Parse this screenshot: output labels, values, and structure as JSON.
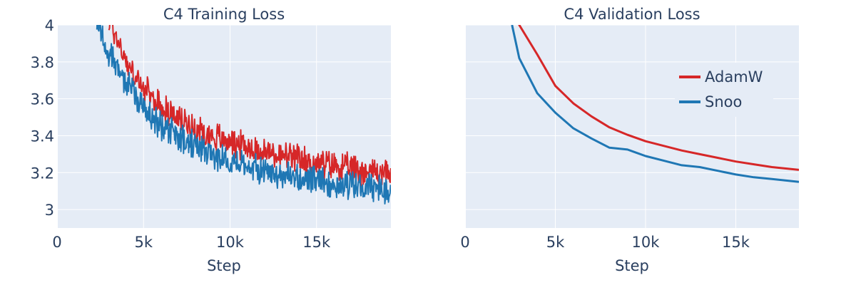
{
  "colors": {
    "plot_bg": "#e5ecf6",
    "grid": "#ffffff",
    "text": "#2a3f5f",
    "adamw": "#d62728",
    "snoo": "#1f77b4"
  },
  "legend": {
    "items": [
      {
        "label": "AdamW",
        "color": "#d62728"
      },
      {
        "label": "Snoo",
        "color": "#1f77b4"
      }
    ]
  },
  "chart_data": [
    {
      "type": "line",
      "title": "C4 Training Loss",
      "xlabel": "Step",
      "ylabel": "",
      "xlim": [
        0,
        19300
      ],
      "ylim": [
        2.9,
        4.0
      ],
      "x_ticks": [
        0,
        5000,
        10000,
        15000
      ],
      "x_tick_labels": [
        "0",
        "5k",
        "10k",
        "15k"
      ],
      "y_ticks": [
        3.0,
        3.2,
        3.4,
        3.6,
        3.8,
        4.0
      ],
      "y_tick_labels": [
        "3",
        "3.2",
        "3.4",
        "3.6",
        "3.8",
        "4"
      ],
      "grid": true,
      "noisy": true,
      "series": [
        {
          "name": "AdamW",
          "color": "#d62728",
          "x": [
            3000,
            3500,
            4000,
            4500,
            5000,
            6000,
            7000,
            8000,
            9000,
            10000,
            11000,
            12000,
            13000,
            14000,
            15000,
            16000,
            17000,
            18000,
            19300
          ],
          "y": [
            4.02,
            3.92,
            3.8,
            3.72,
            3.65,
            3.56,
            3.49,
            3.44,
            3.4,
            3.37,
            3.34,
            3.31,
            3.29,
            3.27,
            3.25,
            3.24,
            3.22,
            3.21,
            3.2
          ]
        },
        {
          "name": "Snoo",
          "color": "#1f77b4",
          "x": [
            2300,
            2800,
            3300,
            4000,
            4500,
            5000,
            6000,
            7000,
            8000,
            9000,
            10000,
            11000,
            12000,
            13000,
            14000,
            15000,
            16000,
            17000,
            18000,
            19300
          ],
          "y": [
            4.0,
            3.9,
            3.8,
            3.68,
            3.62,
            3.55,
            3.45,
            3.39,
            3.34,
            3.3,
            3.27,
            3.24,
            3.21,
            3.19,
            3.17,
            3.15,
            3.14,
            3.13,
            3.12,
            3.1
          ]
        }
      ]
    },
    {
      "type": "line",
      "title": "C4 Validation Loss",
      "xlabel": "Step",
      "ylabel": "",
      "xlim": [
        0,
        18500
      ],
      "ylim": [
        2.9,
        4.0
      ],
      "x_ticks": [
        0,
        5000,
        10000,
        15000
      ],
      "x_tick_labels": [
        "0",
        "5k",
        "10k",
        "15k"
      ],
      "y_ticks": [
        3.0,
        3.2,
        3.4,
        3.6,
        3.8,
        4.0
      ],
      "y_tick_labels": [],
      "grid": true,
      "noisy": false,
      "legend": "top-right",
      "series": [
        {
          "name": "AdamW",
          "color": "#d62728",
          "x": [
            2500,
            3000,
            4000,
            5000,
            6000,
            7000,
            8000,
            9000,
            10000,
            11000,
            12000,
            13000,
            14000,
            15000,
            16000,
            17000,
            18500
          ],
          "y": [
            4.15,
            4.0,
            3.84,
            3.67,
            3.575,
            3.505,
            3.445,
            3.405,
            3.37,
            3.345,
            3.32,
            3.3,
            3.28,
            3.26,
            3.245,
            3.23,
            3.215
          ]
        },
        {
          "name": "Snoo",
          "color": "#1f77b4",
          "x": [
            2600,
            3000,
            4000,
            5000,
            6000,
            7000,
            8000,
            9000,
            10000,
            11000,
            12000,
            13000,
            14000,
            15000,
            16000,
            17000,
            18500
          ],
          "y": [
            4.0,
            3.82,
            3.63,
            3.525,
            3.44,
            3.385,
            3.335,
            3.325,
            3.29,
            3.265,
            3.24,
            3.23,
            3.21,
            3.19,
            3.175,
            3.165,
            3.15
          ]
        }
      ]
    }
  ]
}
